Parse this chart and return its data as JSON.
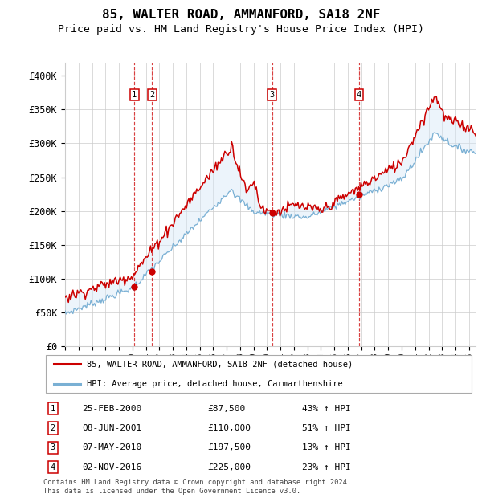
{
  "title": "85, WALTER ROAD, AMMANFORD, SA18 2NF",
  "subtitle": "Price paid vs. HM Land Registry's House Price Index (HPI)",
  "ylabel_ticks": [
    "£0",
    "£50K",
    "£100K",
    "£150K",
    "£200K",
    "£250K",
    "£300K",
    "£350K",
    "£400K"
  ],
  "ytick_values": [
    0,
    50000,
    100000,
    150000,
    200000,
    250000,
    300000,
    350000,
    400000
  ],
  "ylim": [
    0,
    420000
  ],
  "xlim_start": 1995.0,
  "xlim_end": 2025.5,
  "sale_color": "#cc0000",
  "hpi_color": "#7ab0d4",
  "sale_label": "85, WALTER ROAD, AMMANFORD, SA18 2NF (detached house)",
  "hpi_label": "HPI: Average price, detached house, Carmarthenshire",
  "transactions": [
    {
      "num": 1,
      "date": "25-FEB-2000",
      "price": 87500,
      "pct": "43%",
      "year_x": 2000.15
    },
    {
      "num": 2,
      "date": "08-JUN-2001",
      "price": 110000,
      "pct": "51%",
      "year_x": 2001.45
    },
    {
      "num": 3,
      "date": "07-MAY-2010",
      "price": 197500,
      "pct": "13%",
      "year_x": 2010.37
    },
    {
      "num": 4,
      "date": "02-NOV-2016",
      "price": 225000,
      "pct": "23%",
      "year_x": 2016.84
    }
  ],
  "footer": "Contains HM Land Registry data © Crown copyright and database right 2024.\nThis data is licensed under the Open Government Licence v3.0.",
  "shade_color": "#d6e8f7",
  "grid_color": "#cccccc",
  "title_fontsize": 11.5,
  "subtitle_fontsize": 9.5,
  "tick_fontsize": 8.5,
  "xtick_years": [
    1995,
    1996,
    1997,
    1998,
    1999,
    2000,
    2001,
    2002,
    2003,
    2004,
    2005,
    2006,
    2007,
    2008,
    2009,
    2010,
    2011,
    2012,
    2013,
    2014,
    2015,
    2016,
    2017,
    2018,
    2019,
    2020,
    2021,
    2022,
    2023,
    2024,
    2025
  ]
}
